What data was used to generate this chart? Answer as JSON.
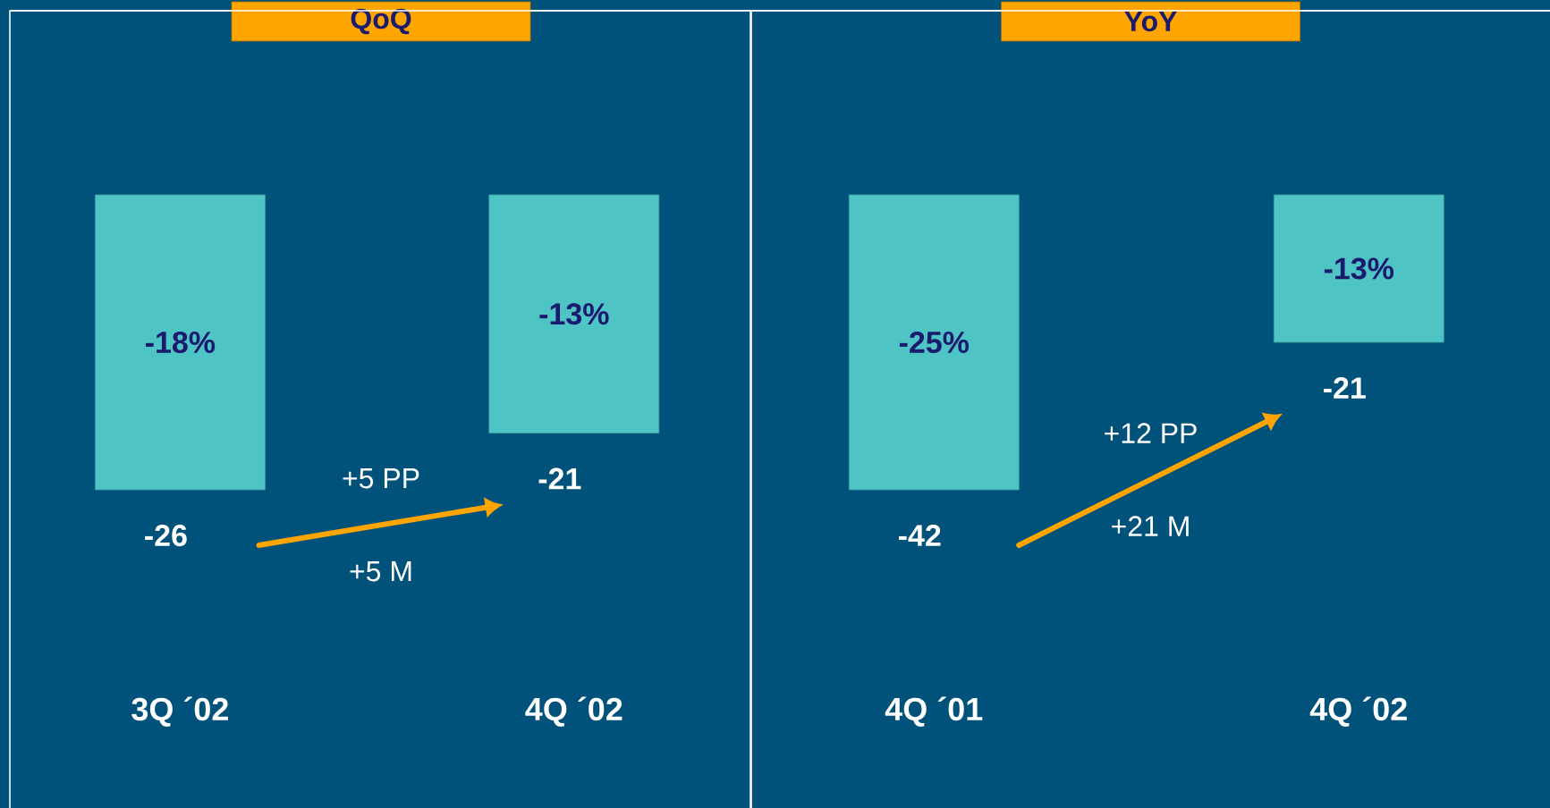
{
  "chart_data": [
    {
      "type": "bar",
      "title": "QoQ",
      "categories": [
        "3Q ´02",
        "4Q ´02"
      ],
      "values": [
        -26,
        -21
      ],
      "color": "#4fc4c4",
      "tick_labels": "x",
      "data_labels": true,
      "annotations": [
        "-18%",
        "-13%",
        "+5 PP",
        "+5 M"
      ]
    },
    {
      "type": "bar",
      "title": "YoY",
      "categories": [
        "4Q ´01",
        "4Q ´02"
      ],
      "values": [
        -42,
        -21
      ],
      "color": "#4fc4c4",
      "tick_labels": "x",
      "data_labels": true,
      "annotations": [
        "-25%",
        "-13%",
        "+12 PP",
        "+21 M"
      ]
    }
  ]
}
